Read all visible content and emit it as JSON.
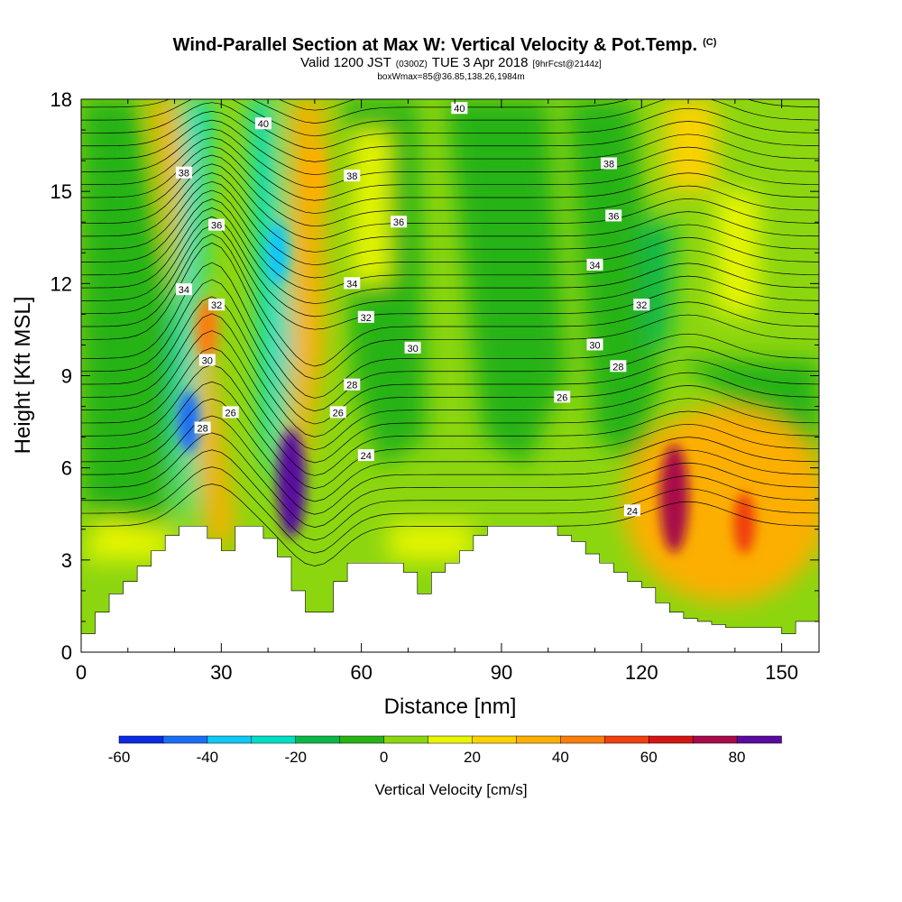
{
  "title": {
    "main": "Wind-Parallel Section at Max W: Vertical Velocity & Pot.Temp.",
    "main_suffix": "(C)",
    "valid_prefix": "Valid 1200 JST",
    "valid_utc": "(0300Z)",
    "valid_date": "TUE 3 Apr 2018",
    "forecast_tag": "[9hrFcst@2144z]",
    "box_info": "boxWmax=85@36.85,138.26,1984m"
  },
  "chart_data": {
    "type": "heatmap",
    "xlabel": "Distance [nm]",
    "ylabel": "Height [Kft MSL]",
    "xlim": [
      0,
      158
    ],
    "ylim": [
      0,
      18
    ],
    "x_ticks": [
      "0",
      "30",
      "60",
      "90",
      "120",
      "150"
    ],
    "y_ticks": [
      "0",
      "3",
      "6",
      "9",
      "12",
      "15",
      "18"
    ],
    "colorbar": {
      "title": "Vertical Velocity [cm/s]",
      "tick_labels": [
        "-60",
        "-40",
        "-20",
        "0",
        "20",
        "40",
        "60",
        "80"
      ],
      "bins": [
        -60,
        -50,
        -40,
        -30,
        -20,
        -10,
        0,
        10,
        20,
        30,
        40,
        50,
        60,
        70,
        80,
        90
      ],
      "colors": [
        "#0a2be6",
        "#1a6ef5",
        "#10c8f5",
        "#00dfc4",
        "#0ab84a",
        "#26b314",
        "#8cd60f",
        "#e6f500",
        "#fad200",
        "#fcaf00",
        "#fa7e0a",
        "#f0410e",
        "#d71414",
        "#a80a4a",
        "#5a0aa0"
      ]
    },
    "terrain_kft": {
      "x": [
        0,
        3,
        6,
        9,
        12,
        15,
        18,
        21,
        24,
        27,
        30,
        33,
        36,
        39,
        42,
        45,
        48,
        51,
        54,
        57,
        60,
        63,
        66,
        69,
        72,
        75,
        78,
        81,
        84,
        87,
        90,
        93,
        96,
        99,
        102,
        105,
        108,
        111,
        114,
        117,
        120,
        123,
        126,
        129,
        132,
        135,
        138,
        141,
        144,
        147,
        150,
        153,
        156,
        158
      ],
      "y": [
        0.6,
        1.3,
        1.9,
        2.3,
        2.8,
        3.3,
        3.8,
        4.1,
        4.1,
        3.7,
        3.3,
        4.1,
        4.1,
        3.7,
        3.1,
        2.0,
        1.3,
        1.3,
        2.3,
        2.9,
        2.9,
        2.9,
        2.9,
        2.6,
        1.9,
        2.6,
        2.9,
        3.3,
        3.8,
        4.1,
        4.1,
        4.1,
        4.1,
        4.1,
        3.8,
        3.6,
        3.2,
        2.9,
        2.6,
        2.3,
        2.1,
        1.6,
        1.3,
        1.1,
        1.0,
        0.9,
        0.8,
        0.8,
        0.8,
        0.8,
        0.6,
        1.0,
        1.0,
        1.0
      ]
    },
    "updraft_cores": [
      {
        "x": 45,
        "y_kft": 5.5,
        "value_cms": 85
      },
      {
        "x": 127,
        "y_kft": 5.0,
        "value_cms": 75
      },
      {
        "x": 142,
        "y_kft": 4.2,
        "value_cms": 50
      },
      {
        "x": 27,
        "y_kft": 10.5,
        "value_cms": 40
      },
      {
        "x": 50,
        "y_kft": 15.5,
        "value_cms": 35
      },
      {
        "x": 23,
        "y_kft": 7.5,
        "value_cms": -50
      },
      {
        "x": 42,
        "y_kft": 13.0,
        "value_cms": -40
      }
    ],
    "theta_contours_C": [
      {
        "value": "40",
        "label_at": [
          [
            39,
            17.2
          ],
          [
            81,
            17.7
          ]
        ]
      },
      {
        "value": "38",
        "label_at": [
          [
            22,
            15.6
          ],
          [
            58,
            15.5
          ],
          [
            113,
            15.9
          ]
        ]
      },
      {
        "value": "36",
        "label_at": [
          [
            29,
            13.9
          ],
          [
            68,
            14.0
          ],
          [
            114,
            14.2
          ]
        ]
      },
      {
        "value": "34",
        "label_at": [
          [
            22,
            11.8
          ],
          [
            58,
            12.0
          ],
          [
            110,
            12.6
          ]
        ]
      },
      {
        "value": "32",
        "label_at": [
          [
            29,
            11.3
          ],
          [
            61,
            10.9
          ],
          [
            120,
            11.3
          ]
        ]
      },
      {
        "value": "30",
        "label_at": [
          [
            27,
            9.5
          ],
          [
            71,
            9.9
          ],
          [
            110,
            10.0
          ]
        ]
      },
      {
        "value": "28",
        "label_at": [
          [
            26,
            7.3
          ],
          [
            58,
            8.7
          ],
          [
            115,
            9.3
          ]
        ]
      },
      {
        "value": "26",
        "label_at": [
          [
            32,
            7.8
          ],
          [
            55,
            7.8
          ],
          [
            103,
            8.3
          ]
        ]
      },
      {
        "value": "24",
        "label_at": [
          [
            61,
            6.4
          ],
          [
            118,
            4.6
          ]
        ]
      }
    ]
  }
}
